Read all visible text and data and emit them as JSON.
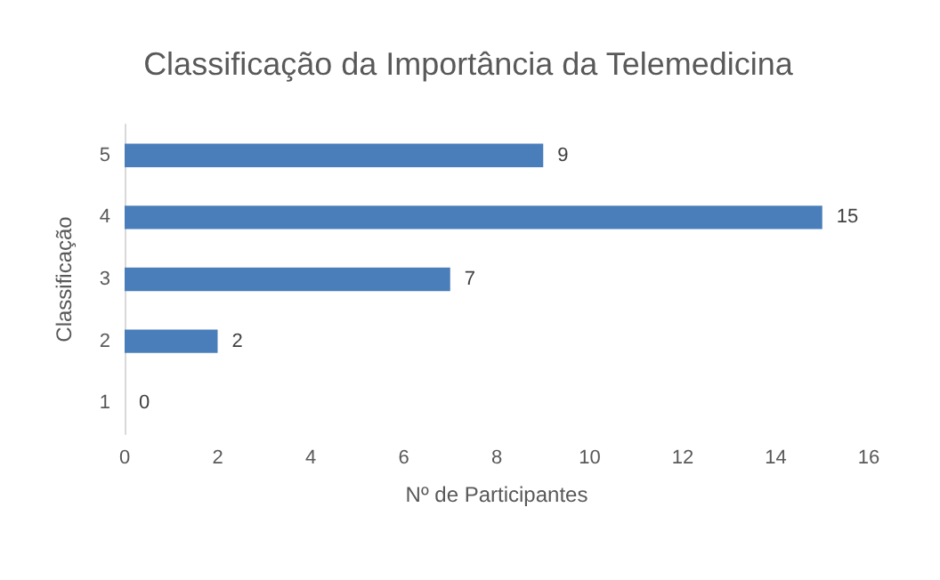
{
  "chart_data": {
    "type": "bar",
    "orientation": "horizontal",
    "title": "Classificação da Importância da Telemedicina",
    "xlabel": "Nº de Participantes",
    "ylabel": "Classificação",
    "categories": [
      "5",
      "4",
      "3",
      "2",
      "1"
    ],
    "values": [
      9,
      15,
      7,
      2,
      0
    ],
    "color": "#4a7ebb",
    "xlim": [
      0,
      16
    ],
    "xticks": [
      0,
      2,
      4,
      6,
      8,
      10,
      12,
      14,
      16
    ],
    "grid": false,
    "data_labels": true
  }
}
